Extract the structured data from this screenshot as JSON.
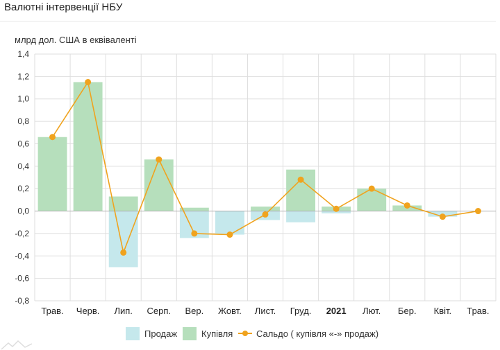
{
  "title": "Валютні інтервенції НБУ",
  "colors": {
    "sell": "#c5e8ec",
    "buy": "#b6dfbc",
    "balance": "#f0a31e",
    "grid": "#dedede",
    "zero_line": "#aaaaaa"
  },
  "legend": {
    "sell": "Продаж",
    "buy": "Купівля",
    "balance": "Сальдо ( купівля «-» продаж)"
  },
  "chart_data": {
    "type": "bar",
    "title": "Валютні інтервенції НБУ",
    "ylabel": "млрд дол. США в еквіваленті",
    "xlabel": "",
    "ylim": [
      -0.8,
      1.4
    ],
    "yticks": [
      "1,4",
      "1,2",
      "1,0",
      "0,8",
      "0,6",
      "0,4",
      "0,2",
      "0,0",
      "-0,2",
      "-0,4",
      "-0,6",
      "-0,8"
    ],
    "categories": [
      "Трав.",
      "Черв.",
      "Лип.",
      "Серп.",
      "Вер.",
      "Жовт.",
      "Лист.",
      "Груд.",
      "2021",
      "Лют.",
      "Бер.",
      "Квіт.",
      "Трав."
    ],
    "bold_categories": [
      "2021"
    ],
    "grid": true,
    "legend_position": "bottom",
    "series": [
      {
        "name": "Продаж",
        "kind": "bar",
        "values": [
          0,
          0,
          -0.5,
          0,
          -0.24,
          -0.21,
          -0.08,
          -0.1,
          -0.02,
          0,
          0,
          -0.05,
          0
        ]
      },
      {
        "name": "Купівля",
        "kind": "bar",
        "values": [
          0.66,
          1.15,
          0.13,
          0.46,
          0.03,
          0,
          0.04,
          0.37,
          0.04,
          0.2,
          0.05,
          0,
          0
        ]
      },
      {
        "name": "Сальдо ( купівля «-» продаж)",
        "kind": "line",
        "values": [
          0.66,
          1.15,
          -0.37,
          0.46,
          -0.2,
          -0.21,
          -0.03,
          0.28,
          0.02,
          0.2,
          0.05,
          -0.05,
          0
        ]
      }
    ]
  }
}
